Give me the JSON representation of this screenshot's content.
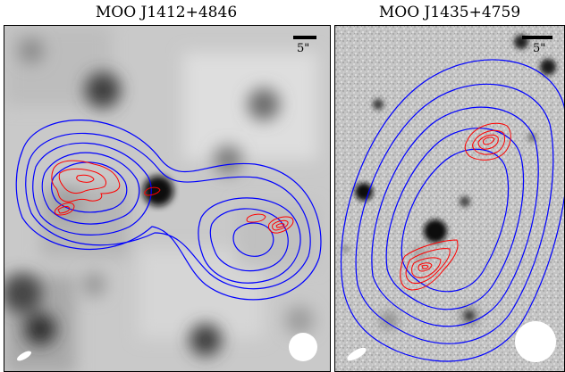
{
  "panels": [
    {
      "title": "MOO J1412+4846",
      "scale_bar_label": "5\"",
      "colors": {
        "contour_blue": "#0000ff",
        "contour_red": "#ff0000",
        "beam": "#ffffff"
      }
    },
    {
      "title": "MOO J1435+4759",
      "scale_bar_label": "5\"",
      "colors": {
        "contour_blue": "#0000ff",
        "contour_red": "#ff0000",
        "beam": "#ffffff"
      }
    }
  ]
}
